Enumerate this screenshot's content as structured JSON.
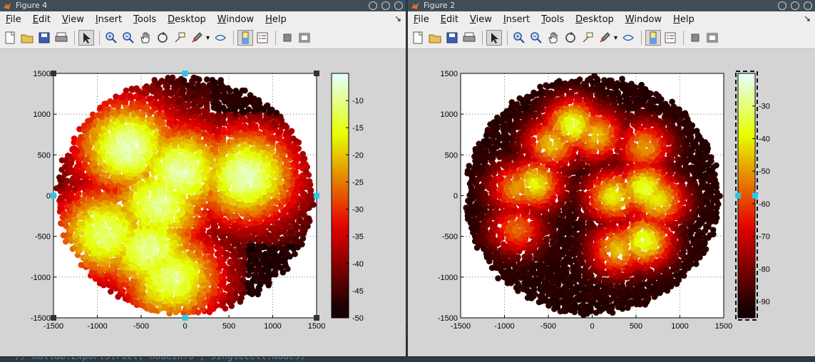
{
  "editor": {
    "code_line": "// matlab.ExportStruct(\"nodeinfo\", singlecell.Nodes)",
    "fragment": "es"
  },
  "menu": [
    "File",
    "Edit",
    "View",
    "Insert",
    "Tools",
    "Desktop",
    "Window",
    "Help"
  ],
  "toolbar_icons": [
    "new-figure-icon",
    "open-file-icon",
    "save-icon",
    "print-icon",
    "edit-plot-icon",
    "zoom-in-icon",
    "zoom-out-icon",
    "pan-icon",
    "rotate-3d-icon",
    "data-cursor-icon",
    "brush-icon",
    "link-plot-icon",
    "colorbar-icon",
    "legend-icon",
    "hide-plot-tools-icon",
    "show-plot-tools-icon"
  ],
  "figures": [
    {
      "title": "Figure 4",
      "chart_data": {
        "type": "scatter",
        "title": "",
        "xlabel": "",
        "ylabel": "",
        "xlim": [
          -1500,
          1500
        ],
        "ylim": [
          -1500,
          1500
        ],
        "xticks": [
          "-1500",
          "-1000",
          "-500",
          "0",
          "500",
          "1000",
          "1500"
        ],
        "yticks": [
          "1500",
          "1000",
          "500",
          "0",
          "-500",
          "-1000",
          "-1500"
        ],
        "grid": true,
        "colormap": "hot",
        "clim": [
          -50,
          -5
        ],
        "colorbar_ticks": [
          "-10",
          "-15",
          "-20",
          "-25",
          "-30",
          "-35",
          "-40",
          "-45",
          "-50"
        ],
        "colorbar_tick_values": [
          -10,
          -15,
          -20,
          -25,
          -30,
          -35,
          -40,
          -45,
          -50
        ],
        "hotspots": [
          {
            "x": -650,
            "y": 600,
            "value": -8
          },
          {
            "x": -50,
            "y": 300,
            "value": -9
          },
          {
            "x": 700,
            "y": 250,
            "value": -8
          },
          {
            "x": -300,
            "y": -100,
            "value": -10
          },
          {
            "x": -900,
            "y": -450,
            "value": -11
          },
          {
            "x": -400,
            "y": -650,
            "value": -10
          },
          {
            "x": -150,
            "y": -1000,
            "value": -11
          }
        ],
        "selected": true
      }
    },
    {
      "title": "Figure 2",
      "chart_data": {
        "type": "scatter",
        "title": "",
        "xlabel": "",
        "ylabel": "",
        "xlim": [
          -1500,
          1500
        ],
        "ylim": [
          -1500,
          1500
        ],
        "xticks": [
          "-1500",
          "-1000",
          "-500",
          "0",
          "500",
          "1000",
          "1500"
        ],
        "yticks": [
          "1500",
          "1000",
          "500",
          "0",
          "-500",
          "-1000",
          "-1500"
        ],
        "grid": true,
        "colormap": "hot",
        "clim": [
          -95,
          -20
        ],
        "colorbar_ticks": [
          "-30",
          "-40",
          "-50",
          "-60",
          "-70",
          "-80",
          "-90"
        ],
        "colorbar_tick_values": [
          -30,
          -40,
          -50,
          -60,
          -70,
          -80,
          -90
        ],
        "hotspots": [
          {
            "x": -220,
            "y": 880,
            "value": -35
          },
          {
            "x": 50,
            "y": 750,
            "value": -45
          },
          {
            "x": -450,
            "y": 640,
            "value": -45
          },
          {
            "x": -850,
            "y": 100,
            "value": -50
          },
          {
            "x": -650,
            "y": 150,
            "value": -40
          },
          {
            "x": 600,
            "y": 600,
            "value": -50
          },
          {
            "x": 250,
            "y": 0,
            "value": -40
          },
          {
            "x": 600,
            "y": 100,
            "value": -35
          },
          {
            "x": 750,
            "y": -50,
            "value": -40
          },
          {
            "x": 300,
            "y": -650,
            "value": -45
          },
          {
            "x": 600,
            "y": -550,
            "value": -35
          },
          {
            "x": -850,
            "y": -400,
            "value": -55
          }
        ],
        "selected": true
      }
    }
  ]
}
